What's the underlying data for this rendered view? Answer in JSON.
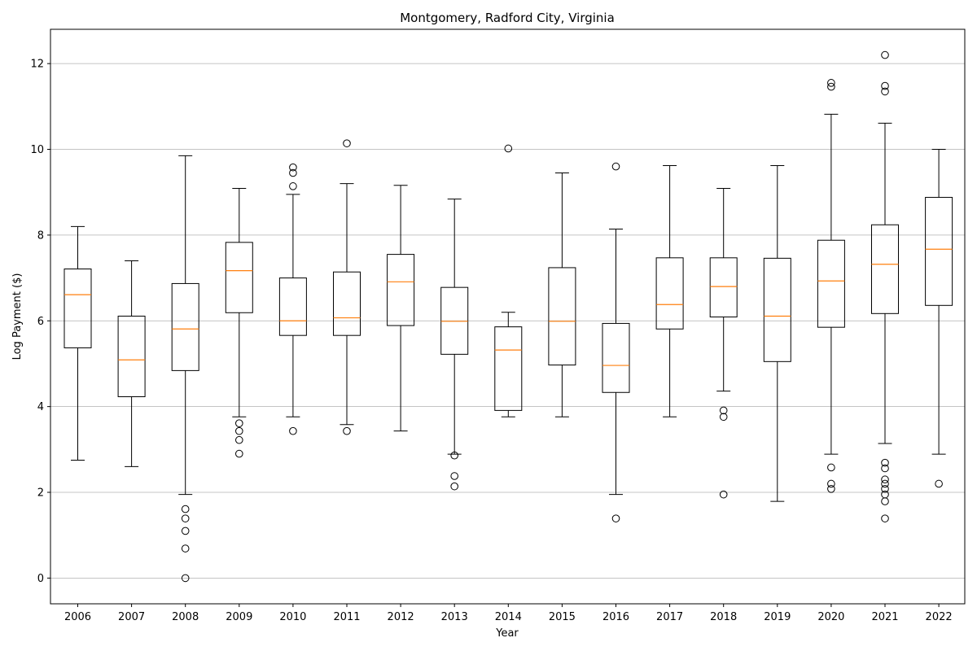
{
  "chart_data": {
    "type": "box",
    "title": "Montgomery, Radford City, Virginia",
    "xlabel": "Year",
    "ylabel": "Log Payment ($)",
    "ylim": [
      -0.6,
      12.8
    ],
    "yticks": [
      0,
      2,
      4,
      6,
      8,
      10,
      12
    ],
    "grid": "y-major",
    "colors": {
      "box": "#000000",
      "median": "#ff7f0e",
      "grid": "#b0b0b0"
    },
    "categories": [
      "2006",
      "2007",
      "2008",
      "2009",
      "2010",
      "2011",
      "2012",
      "2013",
      "2014",
      "2015",
      "2016",
      "2017",
      "2018",
      "2019",
      "2020",
      "2021",
      "2022"
    ],
    "boxes": [
      {
        "category": "2006",
        "whisker_low": 2.75,
        "q1": 5.37,
        "median": 6.61,
        "q3": 7.21,
        "whisker_high": 8.2,
        "outliers": []
      },
      {
        "category": "2007",
        "whisker_low": 2.6,
        "q1": 4.23,
        "median": 5.09,
        "q3": 6.11,
        "whisker_high": 7.4,
        "outliers": []
      },
      {
        "category": "2008",
        "whisker_low": 1.95,
        "q1": 4.84,
        "median": 5.81,
        "q3": 6.87,
        "whisker_high": 9.85,
        "outliers": [
          1.61,
          1.39,
          1.1,
          0.69,
          0.0
        ]
      },
      {
        "category": "2009",
        "whisker_low": 3.76,
        "q1": 6.19,
        "median": 7.17,
        "q3": 7.83,
        "whisker_high": 9.09,
        "outliers": [
          3.61,
          3.43,
          3.22,
          2.9
        ]
      },
      {
        "category": "2010",
        "whisker_low": 3.76,
        "q1": 5.66,
        "median": 6.0,
        "q3": 7.0,
        "whisker_high": 8.95,
        "outliers": [
          9.58,
          9.45,
          9.14,
          3.43
        ]
      },
      {
        "category": "2011",
        "whisker_low": 3.58,
        "q1": 5.66,
        "median": 6.07,
        "q3": 7.14,
        "whisker_high": 9.2,
        "outliers": [
          10.14,
          3.43
        ]
      },
      {
        "category": "2012",
        "whisker_low": 3.43,
        "q1": 5.89,
        "median": 6.91,
        "q3": 7.55,
        "whisker_high": 9.16,
        "outliers": []
      },
      {
        "category": "2013",
        "whisker_low": 2.89,
        "q1": 5.22,
        "median": 5.99,
        "q3": 6.78,
        "whisker_high": 8.84,
        "outliers": [
          2.86,
          2.38,
          2.14
        ]
      },
      {
        "category": "2014",
        "whisker_low": 3.76,
        "q1": 3.91,
        "median": 5.32,
        "q3": 5.86,
        "whisker_high": 6.2,
        "outliers": [
          10.02
        ]
      },
      {
        "category": "2015",
        "whisker_low": 3.76,
        "q1": 4.97,
        "median": 5.99,
        "q3": 7.24,
        "whisker_high": 9.45,
        "outliers": []
      },
      {
        "category": "2016",
        "whisker_low": 1.95,
        "q1": 4.33,
        "median": 4.96,
        "q3": 5.94,
        "whisker_high": 8.14,
        "outliers": [
          9.6,
          1.39
        ]
      },
      {
        "category": "2017",
        "whisker_low": 3.76,
        "q1": 5.81,
        "median": 6.38,
        "q3": 7.47,
        "whisker_high": 9.62,
        "outliers": []
      },
      {
        "category": "2018",
        "whisker_low": 4.36,
        "q1": 6.09,
        "median": 6.8,
        "q3": 7.47,
        "whisker_high": 9.09,
        "outliers": [
          3.91,
          3.76,
          1.95
        ]
      },
      {
        "category": "2019",
        "whisker_low": 1.79,
        "q1": 5.05,
        "median": 6.11,
        "q3": 7.46,
        "whisker_high": 9.62,
        "outliers": []
      },
      {
        "category": "2020",
        "whisker_low": 2.89,
        "q1": 5.85,
        "median": 6.93,
        "q3": 7.88,
        "whisker_high": 10.82,
        "outliers": [
          11.55,
          11.46,
          2.58,
          2.2,
          2.08
        ]
      },
      {
        "category": "2021",
        "whisker_low": 3.14,
        "q1": 6.17,
        "median": 7.32,
        "q3": 8.24,
        "whisker_high": 10.61,
        "outliers": [
          12.2,
          11.48,
          11.35,
          2.69,
          2.56,
          2.3,
          2.2,
          2.08,
          1.95,
          1.79,
          1.39
        ]
      },
      {
        "category": "2022",
        "whisker_low": 2.89,
        "q1": 6.36,
        "median": 7.67,
        "q3": 8.88,
        "whisker_high": 10.0,
        "outliers": [
          2.2
        ]
      }
    ]
  }
}
